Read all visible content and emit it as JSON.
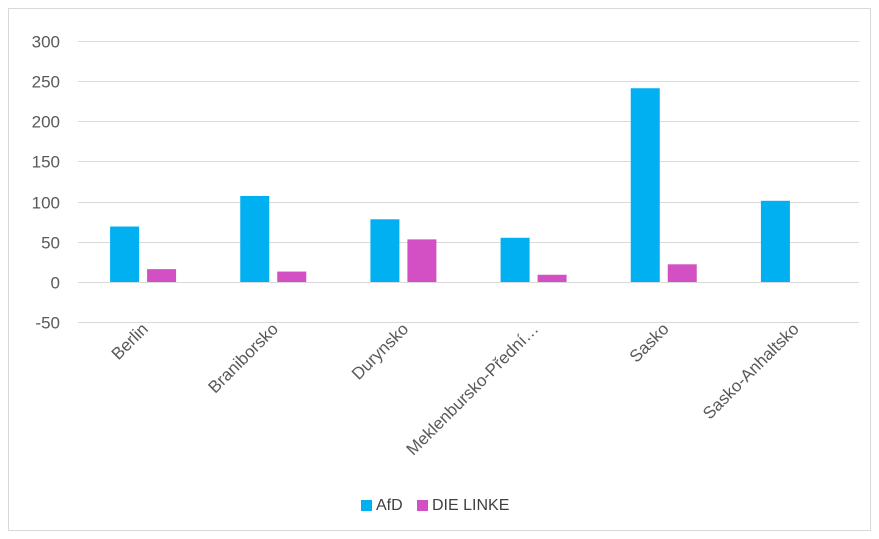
{
  "chart_data": {
    "type": "bar",
    "categories": [
      "Berlin",
      "Braniborsko",
      "Durynsko",
      "Meklenbursko-Přední…",
      "Sasko",
      "Sasko-Anhaltsko"
    ],
    "series": [
      {
        "name": "AfD",
        "color": "#00b0f0",
        "values": [
          69,
          107,
          78,
          55,
          241,
          101
        ]
      },
      {
        "name": "DIE LINKE",
        "color": "#d24fc4",
        "values": [
          16,
          13,
          53,
          9,
          22,
          0
        ]
      }
    ],
    "y_ticks": [
      300,
      250,
      200,
      150,
      100,
      50,
      0,
      -50
    ],
    "ylim": [
      -50,
      300
    ],
    "grid": true,
    "legend_position": "bottom"
  }
}
